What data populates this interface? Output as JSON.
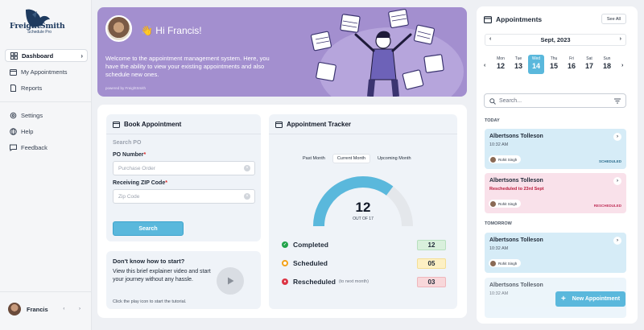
{
  "brand": {
    "name": "FreightSmith",
    "sub": "Schedule Pro"
  },
  "sidebar": {
    "items": [
      {
        "label": "Dashboard",
        "icon": "dashboard-icon",
        "active": true
      },
      {
        "label": "My Appointments",
        "icon": "calendar-icon"
      },
      {
        "label": "Reports",
        "icon": "document-icon"
      }
    ],
    "secondary": [
      {
        "label": "Settings",
        "icon": "gear-icon"
      },
      {
        "label": "Help",
        "icon": "globe-icon"
      },
      {
        "label": "Feedback",
        "icon": "chat-icon"
      }
    ],
    "profile": {
      "name": "Francis"
    }
  },
  "banner": {
    "greeting": "👋 Hi Francis!",
    "text": "Welcome to the appointment management system. Here, you have the ability to view your existing appointments and also schedule new ones.",
    "powered": "powered by FreightSmith"
  },
  "book": {
    "title": "Book Appointment",
    "subtitle": "Search PO",
    "po_label": "PO Number",
    "po_placeholder": "Purchase Order",
    "zip_label": "Receiving ZIP Code",
    "zip_placeholder": "Zip Code",
    "search_button": "Search"
  },
  "tutorial": {
    "title": "Don't know how to start?",
    "text": "View this brief explainer video and start your journey without any hassle.",
    "hint": "Click the play icon to start the tutorial."
  },
  "tracker": {
    "title": "Appointment Tracker",
    "tabs": [
      "Past Month",
      "Current Month",
      "Upcoming Month"
    ],
    "active_tab": 1,
    "gauge": {
      "value": 12,
      "total": 17,
      "caption": "OUT OF 17"
    },
    "stats": [
      {
        "label": "Completed",
        "value": "12",
        "note": "",
        "color": "#22a34a",
        "bg": "#d9f0dc"
      },
      {
        "label": "Scheduled",
        "value": "05",
        "note": "",
        "color": "#f2a21b",
        "bg": "#fdf0c4"
      },
      {
        "label": "Rescheduled",
        "value": "03",
        "note": "(to next month)",
        "color": "#dc3545",
        "bg": "#f8d7da"
      }
    ]
  },
  "appointments": {
    "title": "Appointments",
    "see_all": "See All",
    "month": "Sept, 2023",
    "days": [
      {
        "name": "Mon",
        "date": "12"
      },
      {
        "name": "Tue",
        "date": "13"
      },
      {
        "name": "Wed",
        "date": "14",
        "active": true
      },
      {
        "name": "Thu",
        "date": "15"
      },
      {
        "name": "Fri",
        "date": "16"
      },
      {
        "name": "Sat",
        "date": "17"
      },
      {
        "name": "Sun",
        "date": "18"
      }
    ],
    "search_placeholder": "Search...",
    "today_label": "TODAY",
    "tomorrow_label": "TOMORROW",
    "today": [
      {
        "name": "Albertsons Tolleson",
        "time": "10:32 AM",
        "person": "Rohit Singh",
        "status": "SCHEDULED",
        "kind": "scheduled"
      },
      {
        "name": "Albertsons Tolleson",
        "time": "Rescheduled to 23rd Sept",
        "person": "Rohit Singh",
        "status": "RESCHEDULED",
        "kind": "rescheduled"
      }
    ],
    "tomorrow": [
      {
        "name": "Albertsons Tolleson",
        "time": "10:32 AM",
        "person": "Rohit Singh",
        "status": "",
        "kind": "scheduled"
      },
      {
        "name": "Albertsons Tolleson",
        "time": "10:32 AM",
        "person": "",
        "status": "",
        "kind": "scheduled"
      }
    ],
    "new_button": "New Appointment"
  },
  "colors": {
    "accent": "#5ab8dc",
    "banner": "#a38fcf",
    "scheduled_bg": "#d6ecf7",
    "rescheduled_bg": "#f9e1ea",
    "rescheduled_text": "#c0325a",
    "scheduled_text": "#2f6f8f"
  }
}
